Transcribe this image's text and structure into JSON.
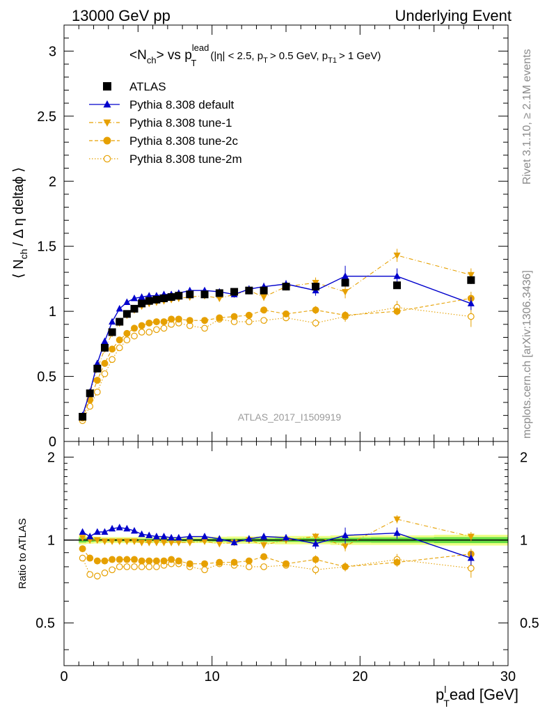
{
  "header": {
    "left": "13000 GeV pp",
    "right": "Underlying Event"
  },
  "side_labels": {
    "rivet": "Rivet 3.1.10, ≥ 2.1M events",
    "mcplots": "mcplots.cern.ch [arXiv:1306.3436]"
  },
  "watermark": "ATLAS_2017_I1509919",
  "colors": {
    "atlas": "#000000",
    "default": "#0000cc",
    "tune": "#e6a000",
    "band_inner": "#66dd44",
    "band_outer": "#eeff88"
  },
  "chart_data": [
    {
      "type": "line",
      "title_parts": {
        "main": "<N",
        "main_sub": "ch",
        "vs": "> vs p",
        "sup": "lead",
        "sub": "T",
        "cuts1": "(|η| < 2.5, p",
        "cuts1_sub": "T",
        "cuts2": "> 0.5 GeV, p",
        "cuts2_sub": "T1",
        "cuts3": "> 1 GeV)"
      },
      "ylabel_parts": {
        "a": "⟨ N",
        "sub": "ch",
        "b": "/ Δ η deltaϕ ⟩"
      },
      "xlim": [
        0,
        30
      ],
      "ylim": [
        0,
        3.2
      ],
      "yticks": [
        "0",
        "0.5",
        "1",
        "1.5",
        "2",
        "2.5",
        "3"
      ],
      "legend_position": "top-left",
      "x": [
        1.25,
        1.75,
        2.25,
        2.75,
        3.25,
        3.75,
        4.25,
        4.75,
        5.25,
        5.75,
        6.25,
        6.75,
        7.25,
        7.75,
        8.5,
        9.5,
        10.5,
        11.5,
        12.5,
        13.5,
        15.0,
        17.0,
        19.0,
        22.5,
        27.5
      ],
      "series": [
        {
          "name": "ATLAS",
          "marker": "square",
          "values": [
            0.19,
            0.37,
            0.56,
            0.72,
            0.84,
            0.92,
            0.98,
            1.02,
            1.06,
            1.08,
            1.09,
            1.1,
            1.11,
            1.12,
            1.13,
            1.13,
            1.14,
            1.15,
            1.16,
            1.16,
            1.19,
            1.19,
            1.22,
            1.2,
            1.24
          ],
          "errors": [
            0.01,
            0.01,
            0.01,
            0.01,
            0.01,
            0.01,
            0.01,
            0.01,
            0.01,
            0.01,
            0.01,
            0.01,
            0.01,
            0.01,
            0.01,
            0.01,
            0.01,
            0.01,
            0.01,
            0.01,
            0.01,
            0.02,
            0.02,
            0.02,
            0.03
          ]
        },
        {
          "name": "Pythia 8.308 default",
          "marker": "triangle-up",
          "style": "solid",
          "values": [
            0.2,
            0.38,
            0.6,
            0.77,
            0.92,
            1.02,
            1.07,
            1.1,
            1.11,
            1.12,
            1.12,
            1.13,
            1.13,
            1.14,
            1.16,
            1.16,
            1.15,
            1.13,
            1.17,
            1.19,
            1.21,
            1.16,
            1.27,
            1.27,
            1.06
          ],
          "errors": [
            0.01,
            0.01,
            0.01,
            0.01,
            0.01,
            0.01,
            0.01,
            0.01,
            0.01,
            0.01,
            0.01,
            0.01,
            0.01,
            0.01,
            0.01,
            0.01,
            0.01,
            0.02,
            0.03,
            0.03,
            0.03,
            0.04,
            0.08,
            0.06,
            0.05
          ]
        },
        {
          "name": "Pythia 8.308 tune-1",
          "marker": "triangle-down",
          "style": "dashdot",
          "values": [
            0.19,
            0.37,
            0.56,
            0.71,
            0.83,
            0.91,
            0.97,
            1.01,
            1.04,
            1.06,
            1.07,
            1.08,
            1.09,
            1.1,
            1.11,
            1.12,
            1.1,
            1.13,
            1.16,
            1.11,
            1.19,
            1.22,
            1.15,
            1.43,
            1.28
          ],
          "errors": [
            0.01,
            0.01,
            0.01,
            0.01,
            0.01,
            0.01,
            0.01,
            0.01,
            0.01,
            0.01,
            0.01,
            0.01,
            0.01,
            0.01,
            0.01,
            0.01,
            0.01,
            0.02,
            0.03,
            0.03,
            0.03,
            0.04,
            0.05,
            0.05,
            0.05
          ]
        },
        {
          "name": "Pythia 8.308 tune-2c",
          "marker": "circle",
          "style": "dashed",
          "values": [
            0.18,
            0.32,
            0.47,
            0.6,
            0.71,
            0.78,
            0.83,
            0.87,
            0.89,
            0.91,
            0.92,
            0.92,
            0.94,
            0.94,
            0.93,
            0.93,
            0.95,
            0.96,
            0.97,
            1.01,
            0.98,
            1.01,
            0.97,
            1.0,
            1.1
          ],
          "errors": [
            0.01,
            0.01,
            0.01,
            0.01,
            0.01,
            0.01,
            0.01,
            0.01,
            0.01,
            0.01,
            0.01,
            0.01,
            0.01,
            0.01,
            0.01,
            0.01,
            0.01,
            0.02,
            0.02,
            0.02,
            0.02,
            0.03,
            0.03,
            0.03,
            0.05
          ]
        },
        {
          "name": "Pythia 8.308 tune-2m",
          "marker": "circle-open",
          "style": "dotted",
          "values": [
            0.16,
            0.27,
            0.38,
            0.52,
            0.63,
            0.72,
            0.78,
            0.81,
            0.84,
            0.84,
            0.86,
            0.87,
            0.9,
            0.91,
            0.89,
            0.87,
            0.94,
            0.92,
            0.92,
            0.93,
            0.95,
            0.91,
            0.96,
            1.03,
            0.96
          ],
          "errors": [
            0.01,
            0.01,
            0.01,
            0.01,
            0.01,
            0.01,
            0.01,
            0.01,
            0.01,
            0.01,
            0.01,
            0.01,
            0.01,
            0.01,
            0.01,
            0.01,
            0.01,
            0.02,
            0.02,
            0.02,
            0.02,
            0.03,
            0.04,
            0.05,
            0.08
          ]
        }
      ]
    },
    {
      "type": "line",
      "ylabel": "Ratio to ATLAS",
      "xlabel_parts": {
        "a": "p",
        "sub": "T",
        "sup": "l",
        "b": "ead [GeV]"
      },
      "xlim": [
        0,
        30
      ],
      "ylim": [
        0.35,
        2.28
      ],
      "xticks": [
        "0",
        "10",
        "20",
        "30"
      ],
      "yticks": [
        "0.5",
        "1",
        "2"
      ],
      "reference_band": {
        "x": [
          1.25,
          1.75,
          2.25,
          2.75,
          3.25,
          3.75,
          4.25,
          4.75,
          5.25,
          5.75,
          6.25,
          6.75,
          7.25,
          7.75,
          8.5,
          9.5,
          10.5,
          11.5,
          12.5,
          13.5,
          15.0,
          17.0,
          19.0,
          22.5,
          27.5
        ],
        "inner": [
          0.02,
          0.015,
          0.012,
          0.01,
          0.01,
          0.01,
          0.01,
          0.01,
          0.01,
          0.01,
          0.01,
          0.01,
          0.01,
          0.01,
          0.01,
          0.01,
          0.012,
          0.012,
          0.013,
          0.014,
          0.015,
          0.017,
          0.02,
          0.022,
          0.025
        ],
        "outer": [
          0.035,
          0.03,
          0.028,
          0.025,
          0.025,
          0.025,
          0.025,
          0.025,
          0.025,
          0.025,
          0.025,
          0.025,
          0.025,
          0.025,
          0.025,
          0.025,
          0.028,
          0.03,
          0.03,
          0.032,
          0.035,
          0.035,
          0.04,
          0.04,
          0.045
        ]
      },
      "series": [
        {
          "name": "Pythia 8.308 default",
          "values": [
            1.07,
            1.03,
            1.07,
            1.07,
            1.1,
            1.11,
            1.1,
            1.08,
            1.05,
            1.04,
            1.03,
            1.03,
            1.02,
            1.02,
            1.03,
            1.03,
            1.01,
            0.98,
            1.01,
            1.03,
            1.02,
            0.97,
            1.04,
            1.06,
            0.86
          ],
          "errors": [
            0.01,
            0.01,
            0.01,
            0.01,
            0.01,
            0.01,
            0.01,
            0.01,
            0.01,
            0.01,
            0.01,
            0.01,
            0.01,
            0.01,
            0.01,
            0.01,
            0.01,
            0.02,
            0.03,
            0.03,
            0.03,
            0.04,
            0.07,
            0.05,
            0.05
          ]
        },
        {
          "name": "Pythia 8.308 tune-1",
          "values": [
            1.02,
            1.0,
            1.0,
            0.99,
            0.99,
            0.99,
            0.99,
            0.99,
            0.98,
            0.98,
            0.98,
            0.98,
            0.98,
            0.98,
            0.98,
            0.99,
            0.97,
            0.98,
            1.0,
            0.96,
            1.0,
            1.03,
            0.95,
            1.19,
            1.03
          ],
          "errors": [
            0.01,
            0.01,
            0.01,
            0.01,
            0.01,
            0.01,
            0.01,
            0.01,
            0.01,
            0.01,
            0.01,
            0.01,
            0.01,
            0.01,
            0.01,
            0.01,
            0.01,
            0.02,
            0.03,
            0.03,
            0.03,
            0.03,
            0.04,
            0.04,
            0.04
          ]
        },
        {
          "name": "Pythia 8.308 tune-2c",
          "values": [
            0.93,
            0.86,
            0.84,
            0.84,
            0.85,
            0.85,
            0.85,
            0.85,
            0.84,
            0.84,
            0.84,
            0.84,
            0.85,
            0.84,
            0.82,
            0.82,
            0.83,
            0.83,
            0.84,
            0.87,
            0.82,
            0.85,
            0.8,
            0.83,
            0.89
          ],
          "errors": [
            0.01,
            0.01,
            0.01,
            0.01,
            0.01,
            0.01,
            0.01,
            0.01,
            0.01,
            0.01,
            0.01,
            0.01,
            0.01,
            0.01,
            0.01,
            0.01,
            0.01,
            0.02,
            0.02,
            0.02,
            0.02,
            0.03,
            0.03,
            0.03,
            0.04
          ]
        },
        {
          "name": "Pythia 8.308 tune-2m",
          "values": [
            0.86,
            0.75,
            0.74,
            0.76,
            0.78,
            0.8,
            0.8,
            0.8,
            0.8,
            0.8,
            0.8,
            0.81,
            0.82,
            0.82,
            0.8,
            0.78,
            0.82,
            0.81,
            0.8,
            0.8,
            0.81,
            0.78,
            0.8,
            0.85,
            0.79
          ],
          "errors": [
            0.01,
            0.01,
            0.01,
            0.01,
            0.01,
            0.01,
            0.01,
            0.01,
            0.01,
            0.01,
            0.01,
            0.01,
            0.01,
            0.01,
            0.01,
            0.01,
            0.01,
            0.02,
            0.02,
            0.02,
            0.02,
            0.03,
            0.03,
            0.04,
            0.06
          ]
        }
      ]
    }
  ]
}
